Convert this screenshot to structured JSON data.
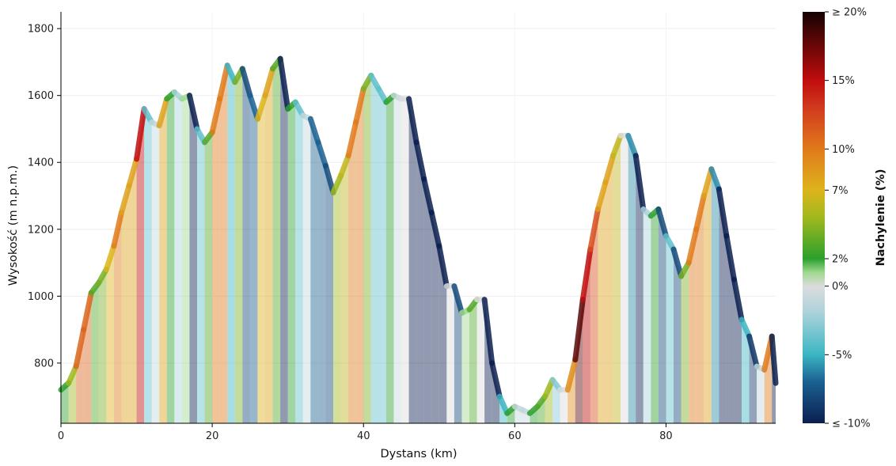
{
  "chart_data": {
    "type": "area",
    "title": "",
    "xlabel": "Dystans (km)",
    "ylabel": "Wysokość (m n.p.m.)",
    "xlim": [
      0,
      94.5
    ],
    "ylim": [
      620,
      1850
    ],
    "xticks": [
      0,
      20,
      40,
      60,
      80
    ],
    "yticks": [
      800,
      1000,
      1200,
      1400,
      1600,
      1800
    ],
    "grid": true,
    "x": [
      0,
      1,
      2,
      3,
      4,
      5,
      6,
      7,
      8,
      9,
      10,
      11,
      12,
      13,
      14,
      15,
      16,
      17,
      18,
      19,
      20,
      21,
      22,
      23,
      24,
      25,
      26,
      27,
      28,
      29,
      30,
      31,
      32,
      33,
      34,
      35,
      36,
      37,
      38,
      39,
      40,
      41,
      42,
      43,
      44,
      45,
      46,
      47,
      48,
      49,
      50,
      51,
      52,
      53,
      54,
      55,
      56,
      57,
      58,
      59,
      60,
      61,
      62,
      63,
      64,
      65,
      66,
      67,
      68,
      69,
      70,
      71,
      72,
      73,
      74,
      75,
      76,
      77,
      78,
      79,
      80,
      81,
      82,
      83,
      84,
      85,
      86,
      87,
      88,
      89,
      90,
      91,
      92,
      93,
      94,
      94.5
    ],
    "elevation": [
      720,
      740,
      790,
      900,
      1010,
      1040,
      1080,
      1150,
      1250,
      1330,
      1410,
      1560,
      1520,
      1510,
      1590,
      1610,
      1590,
      1600,
      1500,
      1460,
      1490,
      1590,
      1690,
      1640,
      1680,
      1600,
      1530,
      1600,
      1680,
      1710,
      1560,
      1580,
      1540,
      1530,
      1460,
      1390,
      1310,
      1360,
      1420,
      1520,
      1620,
      1660,
      1620,
      1580,
      1600,
      1590,
      1590,
      1460,
      1350,
      1250,
      1150,
      1030,
      1030,
      950,
      960,
      990,
      990,
      800,
      700,
      650,
      670,
      660,
      650,
      670,
      700,
      750,
      720,
      720,
      810,
      990,
      1140,
      1260,
      1340,
      1420,
      1480,
      1480,
      1420,
      1260,
      1240,
      1260,
      1180,
      1140,
      1060,
      1100,
      1200,
      1300,
      1380,
      1320,
      1180,
      1050,
      930,
      880,
      790,
      780,
      880,
      740
    ],
    "colorbar": {
      "label": "Nachylenie (%)",
      "min": -10,
      "max": 20,
      "ticks": [
        {
          "value": 20,
          "label": "≥ 20%"
        },
        {
          "value": 15,
          "label": "15%"
        },
        {
          "value": 10,
          "label": "10%"
        },
        {
          "value": 7,
          "label": "7%"
        },
        {
          "value": 2,
          "label": "2%"
        },
        {
          "value": 0,
          "label": "0%"
        },
        {
          "value": -5,
          "label": "-5%"
        },
        {
          "value": -10,
          "label": "≤ -10%"
        }
      ],
      "stops": [
        {
          "value": -10,
          "color": "#0b1f4f"
        },
        {
          "value": -7,
          "color": "#1a6090"
        },
        {
          "value": -5,
          "color": "#3bb5c4"
        },
        {
          "value": -2,
          "color": "#a9d2da"
        },
        {
          "value": 0,
          "color": "#dcdcdc"
        },
        {
          "value": 1,
          "color": "#9fd88f"
        },
        {
          "value": 2,
          "color": "#2ca02c"
        },
        {
          "value": 5,
          "color": "#a0b81e"
        },
        {
          "value": 7,
          "color": "#ddb41c"
        },
        {
          "value": 10,
          "color": "#e07a1b"
        },
        {
          "value": 13,
          "color": "#d13a1e"
        },
        {
          "value": 15,
          "color": "#c00d0d"
        },
        {
          "value": 17.5,
          "color": "#6b0707"
        },
        {
          "value": 20,
          "color": "#140202"
        }
      ]
    }
  }
}
